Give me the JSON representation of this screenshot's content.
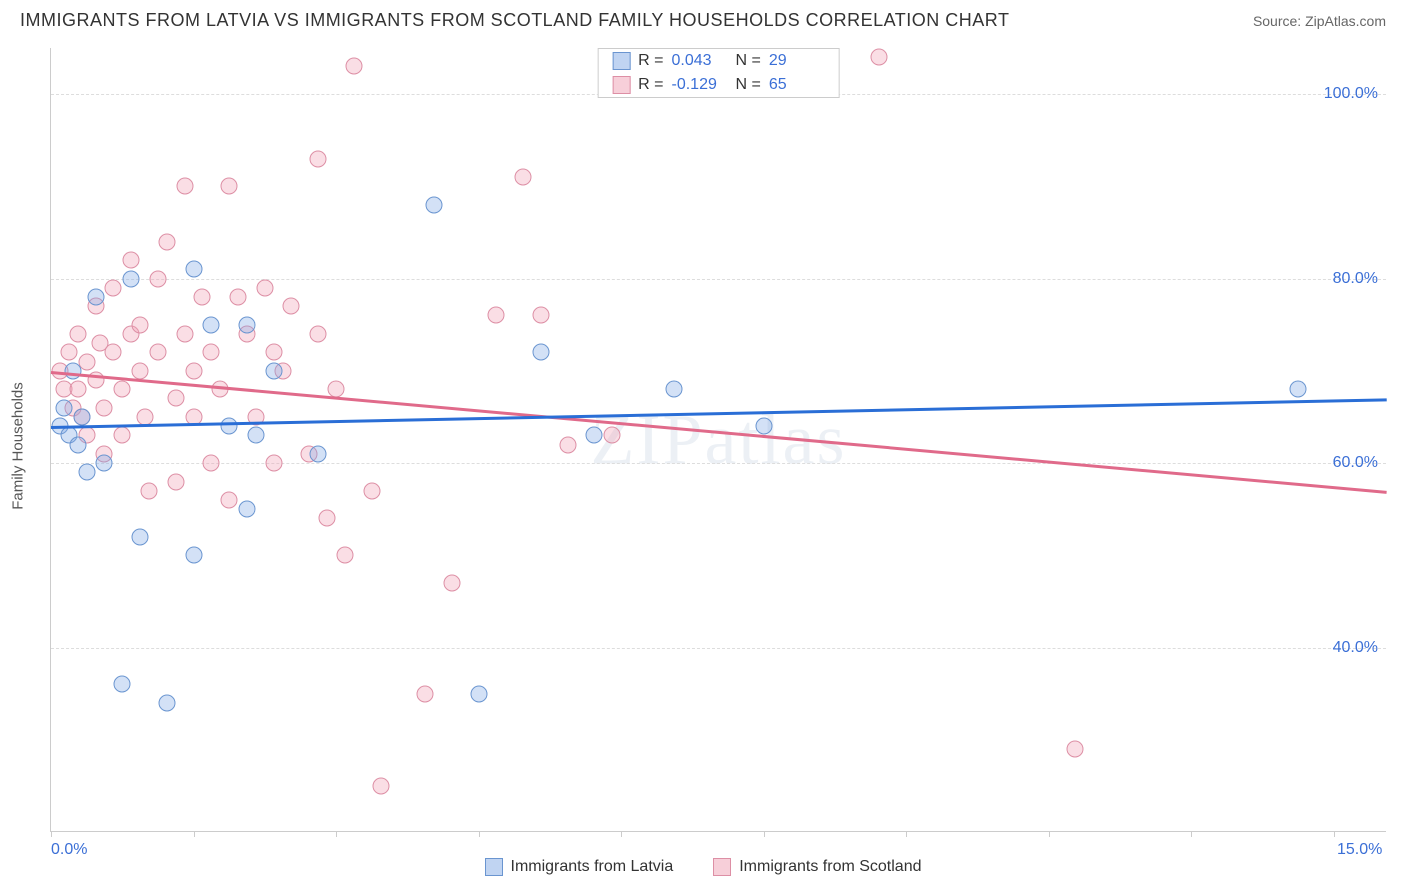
{
  "title": "IMMIGRANTS FROM LATVIA VS IMMIGRANTS FROM SCOTLAND FAMILY HOUSEHOLDS CORRELATION CHART",
  "source": "Source: ZipAtlas.com",
  "watermark": "ZIPatlas",
  "ylabel": "Family Households",
  "chart": {
    "type": "scatter",
    "xlim": [
      0,
      15
    ],
    "ylim": [
      20,
      105
    ],
    "xtick_positions": [
      0,
      1.6,
      3.2,
      4.8,
      6.4,
      8.0,
      9.6,
      11.2,
      12.8,
      14.4
    ],
    "xtick_labels": {
      "0": "0.0%",
      "15": "15.0%"
    },
    "ytick_positions": [
      40,
      60,
      80,
      100
    ],
    "ytick_labels": [
      "40.0%",
      "60.0%",
      "80.0%",
      "100.0%"
    ],
    "grid_color": "#dddddd",
    "background_color": "#ffffff",
    "series_a": {
      "name": "Immigrants from Latvia",
      "color_fill": "rgba(130,170,230,0.35)",
      "color_stroke": "#6a95d0",
      "trend_color": "#2a6ed6",
      "R": "0.043",
      "N": "29",
      "trend": {
        "x1": 0,
        "y1": 64.0,
        "x2": 15,
        "y2": 67.0
      },
      "points": [
        [
          0.1,
          64
        ],
        [
          0.15,
          66
        ],
        [
          0.2,
          63
        ],
        [
          0.25,
          70
        ],
        [
          0.3,
          62
        ],
        [
          0.35,
          65
        ],
        [
          0.5,
          78
        ],
        [
          0.6,
          60
        ],
        [
          0.9,
          80
        ],
        [
          1.0,
          52
        ],
        [
          1.3,
          34
        ],
        [
          0.8,
          36
        ],
        [
          1.6,
          81
        ],
        [
          1.6,
          50
        ],
        [
          1.8,
          75
        ],
        [
          2.0,
          64
        ],
        [
          2.2,
          55
        ],
        [
          2.2,
          75
        ],
        [
          2.3,
          63
        ],
        [
          2.5,
          70
        ],
        [
          3.0,
          61
        ],
        [
          4.3,
          88
        ],
        [
          4.8,
          35
        ],
        [
          5.5,
          72
        ],
        [
          6.1,
          63
        ],
        [
          7.0,
          68
        ],
        [
          8.0,
          64
        ],
        [
          14.0,
          68
        ],
        [
          0.4,
          59
        ]
      ]
    },
    "series_b": {
      "name": "Immigrants from Scotland",
      "color_fill": "rgba(240,160,180,0.35)",
      "color_stroke": "#dd8fa5",
      "trend_color": "#e06a8a",
      "R": "-0.129",
      "N": "65",
      "trend": {
        "x1": 0,
        "y1": 70.0,
        "x2": 15,
        "y2": 57.0
      },
      "points": [
        [
          0.1,
          70
        ],
        [
          0.15,
          68
        ],
        [
          0.2,
          72
        ],
        [
          0.25,
          66
        ],
        [
          0.3,
          74
        ],
        [
          0.3,
          68
        ],
        [
          0.35,
          65
        ],
        [
          0.4,
          71
        ],
        [
          0.4,
          63
        ],
        [
          0.5,
          77
        ],
        [
          0.5,
          69
        ],
        [
          0.55,
          73
        ],
        [
          0.6,
          66
        ],
        [
          0.6,
          61
        ],
        [
          0.7,
          79
        ],
        [
          0.7,
          72
        ],
        [
          0.8,
          68
        ],
        [
          0.8,
          63
        ],
        [
          0.9,
          74
        ],
        [
          0.9,
          82
        ],
        [
          1.0,
          70
        ],
        [
          1.0,
          75
        ],
        [
          1.05,
          65
        ],
        [
          1.1,
          57
        ],
        [
          1.2,
          72
        ],
        [
          1.2,
          80
        ],
        [
          1.3,
          84
        ],
        [
          1.4,
          67
        ],
        [
          1.4,
          58
        ],
        [
          1.5,
          74
        ],
        [
          1.5,
          90
        ],
        [
          1.6,
          70
        ],
        [
          1.6,
          65
        ],
        [
          1.7,
          78
        ],
        [
          1.8,
          72
        ],
        [
          1.8,
          60
        ],
        [
          1.9,
          68
        ],
        [
          2.0,
          90
        ],
        [
          2.0,
          56
        ],
        [
          2.1,
          78
        ],
        [
          2.2,
          74
        ],
        [
          2.3,
          65
        ],
        [
          2.4,
          79
        ],
        [
          2.5,
          72
        ],
        [
          2.5,
          60
        ],
        [
          2.6,
          70
        ],
        [
          2.7,
          77
        ],
        [
          2.9,
          61
        ],
        [
          3.0,
          74
        ],
        [
          3.0,
          93
        ],
        [
          3.1,
          54
        ],
        [
          3.2,
          68
        ],
        [
          3.3,
          50
        ],
        [
          3.4,
          103
        ],
        [
          3.6,
          57
        ],
        [
          3.7,
          25
        ],
        [
          4.2,
          35
        ],
        [
          4.5,
          47
        ],
        [
          5.0,
          76
        ],
        [
          5.3,
          91
        ],
        [
          5.5,
          76
        ],
        [
          5.8,
          62
        ],
        [
          6.3,
          63
        ],
        [
          9.3,
          104
        ],
        [
          11.5,
          29
        ]
      ]
    }
  },
  "legend_top": {
    "rows": [
      {
        "swatch": "a",
        "R_label": "R =",
        "R_val": "0.043",
        "N_label": "N =",
        "N_val": "29"
      },
      {
        "swatch": "b",
        "R_label": "R =",
        "R_val": "-0.129",
        "N_label": "N =",
        "N_val": "65"
      }
    ]
  },
  "legend_bottom": {
    "items": [
      {
        "swatch": "a",
        "label": "Immigrants from Latvia"
      },
      {
        "swatch": "b",
        "label": "Immigrants from Scotland"
      }
    ]
  }
}
